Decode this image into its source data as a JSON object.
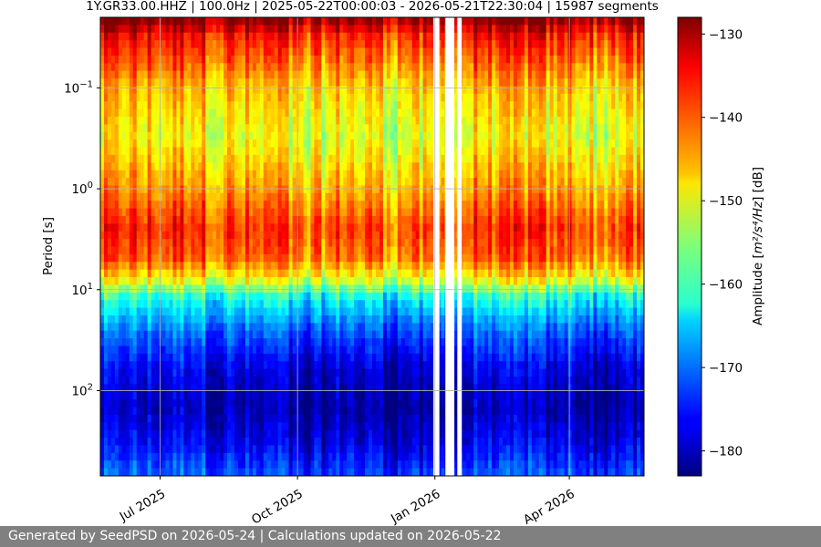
{
  "chart_data": {
    "type": "heatmap",
    "title": "1Y.GR33.00.HHZ | 100.0Hz | 2025-05-22T00:00:03 - 2026-05-21T22:30:04 | 15987 segments",
    "ylabel": "Period [s]",
    "xlabel": "",
    "y_scale": "log",
    "y_inverted": true,
    "ylim": [
      0.02,
      700
    ],
    "y_ticks": [
      {
        "value": 0.1,
        "base": "10",
        "exp": "−1"
      },
      {
        "value": 1,
        "base": "10",
        "exp": "0"
      },
      {
        "value": 10,
        "base": "10",
        "exp": "1"
      },
      {
        "value": 100,
        "base": "10",
        "exp": "2"
      }
    ],
    "xlim": [
      "2025-05-22",
      "2026-05-21"
    ],
    "x_ticks": [
      {
        "value": "2025-07-01",
        "label": "Jul 2025"
      },
      {
        "value": "2025-10-01",
        "label": "Oct 2025"
      },
      {
        "value": "2026-01-01",
        "label": "Jan 2026"
      },
      {
        "value": "2026-04-01",
        "label": "Apr 2026"
      }
    ],
    "grid": true,
    "colormap": "jet",
    "colorbar": {
      "label_prefix": "Amplitude [",
      "label_math": "m²/s⁴/Hz",
      "label_suffix": "] [dB]",
      "range": [
        -183,
        -128
      ],
      "ticks": [
        -130,
        -140,
        -150,
        -160,
        -170,
        -180
      ],
      "tick_labels": [
        "−130",
        "−140",
        "−150",
        "−160",
        "−170",
        "−180"
      ]
    },
    "data_gaps": [
      {
        "start": "2025-12-31",
        "end": "2026-01-04"
      },
      {
        "start": "2026-01-08",
        "end": "2026-01-14"
      },
      {
        "start": "2026-01-16",
        "end": "2026-01-19"
      }
    ],
    "amplitude_profile": [
      {
        "period": 0.02,
        "db": -128
      },
      {
        "period": 0.03,
        "db": -136
      },
      {
        "period": 0.1,
        "db": -146
      },
      {
        "period": 0.3,
        "db": -150
      },
      {
        "period": 1,
        "db": -144
      },
      {
        "period": 2.5,
        "db": -138
      },
      {
        "period": 5,
        "db": -141
      },
      {
        "period": 8,
        "db": -150
      },
      {
        "period": 12,
        "db": -162
      },
      {
        "period": 25,
        "db": -171
      },
      {
        "period": 60,
        "db": -178
      },
      {
        "period": 150,
        "db": -181
      },
      {
        "period": 300,
        "db": -178
      },
      {
        "period": 700,
        "db": -172
      }
    ]
  },
  "footer": {
    "text": "Generated by SeedPSD on 2026-05-24 | Calculations updated on 2026-05-22"
  }
}
